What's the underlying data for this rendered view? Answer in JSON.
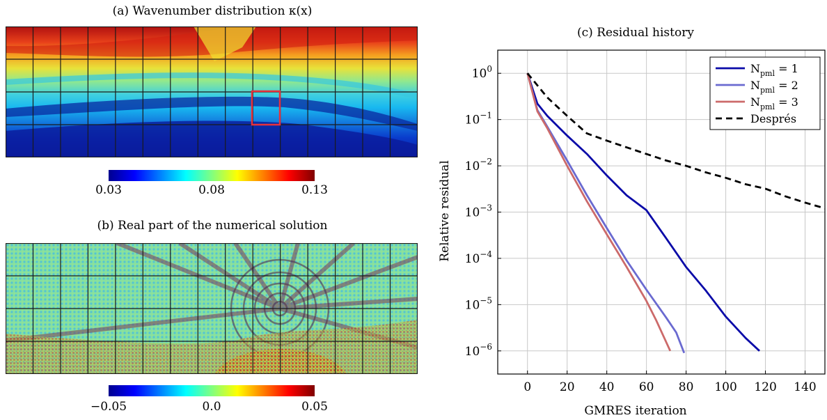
{
  "panel_a": {
    "caption": "(a) Wavenumber distribution κ(x)",
    "colorbar_ticks": [
      "0.03",
      "0.08",
      "0.13"
    ]
  },
  "panel_b": {
    "caption": "(b) Real part of the numerical solution",
    "colorbar_ticks": [
      "−0.05",
      "0.0",
      "0.05"
    ]
  },
  "colors": {
    "npml1": "#0a0aa8",
    "npml2": "#6a6ad0",
    "npml3": "#cc6a6a",
    "despres": "#000000",
    "highlight_box": "#e8323c"
  },
  "chart_data": {
    "type": "line",
    "title": "(c) Residual history",
    "xlabel": "GMRES iteration",
    "ylabel": "Relative residual",
    "xlim": [
      -15,
      150
    ],
    "ylim_log10": [
      -6.5,
      0.5
    ],
    "y_scale": "log",
    "xticks": [
      0,
      20,
      40,
      60,
      80,
      100,
      120,
      140
    ],
    "yticks_exp": [
      0,
      -1,
      -2,
      -3,
      -4,
      -5,
      -6
    ],
    "grid": true,
    "legend_position": "top-right",
    "series": [
      {
        "name": "N_pml = 1",
        "color_key": "npml1",
        "dashed": false,
        "x": [
          0,
          5,
          10,
          20,
          30,
          40,
          50,
          60,
          70,
          80,
          90,
          100,
          110,
          117
        ],
        "y": [
          1,
          0.22,
          0.12,
          0.045,
          0.018,
          0.0062,
          0.0023,
          0.0011,
          0.00027,
          6.5e-05,
          2e-05,
          5.5e-06,
          1.9e-06,
          1e-06
        ]
      },
      {
        "name": "N_pml = 2",
        "color_key": "npml2",
        "dashed": false,
        "x": [
          0,
          5,
          10,
          20,
          30,
          40,
          50,
          60,
          70,
          75,
          79
        ],
        "y": [
          1,
          0.16,
          0.07,
          0.013,
          0.0023,
          0.00045,
          9e-05,
          2.1e-05,
          5.2e-06,
          2.5e-06,
          9e-07
        ]
      },
      {
        "name": "N_pml = 3",
        "color_key": "npml3",
        "dashed": false,
        "x": [
          0,
          5,
          10,
          20,
          30,
          40,
          50,
          60,
          65,
          72
        ],
        "y": [
          1,
          0.15,
          0.065,
          0.01,
          0.0017,
          0.00033,
          6.5e-05,
          1.2e-05,
          4.5e-06,
          1e-06
        ]
      },
      {
        "name": "Després",
        "color_key": "despres",
        "dashed": true,
        "x": [
          0,
          10,
          20,
          30,
          40,
          50,
          60,
          70,
          80,
          90,
          100,
          110,
          120,
          130,
          140,
          150
        ],
        "y": [
          1,
          0.3,
          0.12,
          0.05,
          0.035,
          0.025,
          0.018,
          0.013,
          0.01,
          0.0072,
          0.0055,
          0.004,
          0.0032,
          0.0022,
          0.0016,
          0.0012
        ]
      }
    ]
  }
}
